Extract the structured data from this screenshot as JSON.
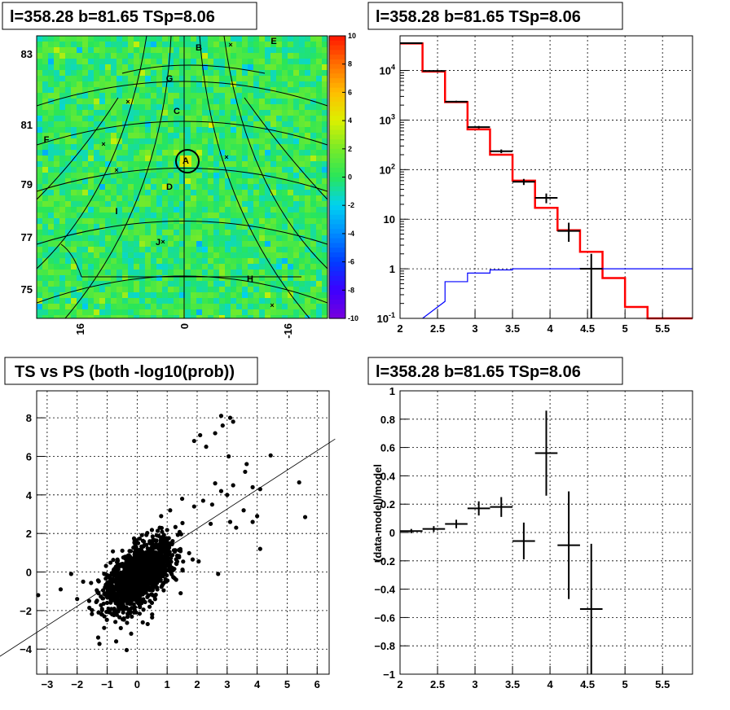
{
  "chart_data": [
    {
      "type": "heatmap",
      "title": "l=358.28 b=81.65 TSp=8.06",
      "ytick_labels": [
        "83",
        "81",
        "79",
        "77",
        "75"
      ],
      "xtick_labels": [
        "16",
        "0",
        "-16"
      ],
      "colorbar_ticks": [
        "10",
        "8",
        "6",
        "4",
        "2",
        "0",
        "-2",
        "-4",
        "-6",
        "-8",
        "-10"
      ],
      "zlim": [
        -10,
        10
      ],
      "source_labels": [
        "A",
        "B",
        "C",
        "D",
        "E",
        "F",
        "G",
        "H",
        "I",
        "J"
      ]
    },
    {
      "type": "line",
      "title": "l=358.28 b=81.65 TSp=8.06",
      "ylog": true,
      "xlim": [
        2,
        5.9
      ],
      "ylim": [
        0.1,
        50000
      ],
      "xtick_labels": [
        "2",
        "2.5",
        "3",
        "3.5",
        "4",
        "4.5",
        "5",
        "5.5"
      ],
      "ytick_labels": [
        "10^-1",
        "1",
        "10",
        "10^2",
        "10^3",
        "10^4"
      ],
      "series": [
        {
          "color": "#ff0000",
          "edges": [
            2.0,
            2.3,
            2.6,
            2.9,
            3.2,
            3.5,
            3.8,
            4.1,
            4.4,
            4.7,
            5.0,
            5.3,
            5.6,
            5.9
          ],
          "values": [
            35000,
            9500,
            2300,
            650,
            200,
            60,
            17,
            6,
            2.2,
            0.65,
            0.17,
            0.1,
            0.1
          ]
        },
        {
          "color": "#0000ff",
          "edges": [
            2.3,
            2.6,
            2.9,
            3.2,
            3.5,
            3.8,
            4.1,
            4.4,
            4.7,
            5.0,
            5.3,
            5.6,
            5.9
          ],
          "values": [
            0.22,
            0.55,
            0.82,
            0.95,
            1.0,
            1.0,
            1.0,
            1.02,
            1.0,
            1.0,
            1.0,
            1.0
          ]
        },
        {
          "color": "#000000",
          "points": [
            {
              "x": 2.15,
              "y": 35500,
              "dx": 0.15,
              "lo": 35000,
              "hi": 36000
            },
            {
              "x": 2.45,
              "y": 9800,
              "dx": 0.15,
              "lo": 9600,
              "hi": 10000
            },
            {
              "x": 2.75,
              "y": 2350,
              "dx": 0.15,
              "lo": 2250,
              "hi": 2450
            },
            {
              "x": 3.05,
              "y": 720,
              "dx": 0.15,
              "lo": 680,
              "hi": 760
            },
            {
              "x": 3.35,
              "y": 235,
              "dx": 0.15,
              "lo": 215,
              "hi": 255
            },
            {
              "x": 3.65,
              "y": 57,
              "dx": 0.15,
              "lo": 49,
              "hi": 65
            },
            {
              "x": 3.95,
              "y": 27,
              "dx": 0.15,
              "lo": 21,
              "hi": 33
            },
            {
              "x": 4.25,
              "y": 5.8,
              "dx": 0.15,
              "lo": 3.5,
              "hi": 8.5
            },
            {
              "x": 4.55,
              "y": 1.0,
              "dx": 0.15,
              "lo": 0.1,
              "hi": 2.0
            }
          ]
        }
      ]
    },
    {
      "type": "scatter",
      "title": "TS vs PS (both -log10(prob))",
      "xlim": [
        -3.35,
        6.4
      ],
      "ylim": [
        -5.3,
        9.4
      ],
      "xtick_labels": [
        "−3",
        "−2",
        "−1",
        "0",
        "1",
        "2",
        "3",
        "4",
        "5",
        "6"
      ],
      "ytick_labels": [
        "−4",
        "−2",
        "0",
        "2",
        "4",
        "6",
        "8"
      ],
      "fit_line": {
        "x1": -4.65,
        "y1": -4.45,
        "x2": 6.6,
        "y2": 6.9
      },
      "outliers": [
        [
          2.8,
          8.1
        ],
        [
          3.1,
          8.0
        ],
        [
          3.2,
          7.8
        ],
        [
          2.85,
          7.6
        ],
        [
          2.6,
          7.2
        ],
        [
          2.1,
          7.1
        ],
        [
          1.9,
          6.8
        ],
        [
          2.3,
          6.5
        ],
        [
          4.45,
          6.05
        ],
        [
          3.05,
          6.0
        ],
        [
          3.65,
          5.6
        ],
        [
          3.6,
          5.2
        ],
        [
          5.4,
          4.65
        ],
        [
          2.6,
          4.6
        ],
        [
          3.2,
          4.5
        ],
        [
          3.85,
          4.4
        ],
        [
          4.1,
          4.3
        ],
        [
          2.8,
          4.2
        ],
        [
          3.0,
          4.0
        ],
        [
          5.6,
          2.85
        ],
        [
          3.55,
          3.2
        ],
        [
          4.0,
          2.9
        ],
        [
          3.1,
          2.6
        ],
        [
          2.2,
          3.7
        ],
        [
          1.9,
          3.4
        ],
        [
          2.5,
          3.5
        ],
        [
          1.5,
          3.8
        ],
        [
          1.1,
          3.2
        ],
        [
          0.8,
          2.9
        ],
        [
          3.85,
          2.6
        ],
        [
          3.3,
          2.3
        ],
        [
          2.45,
          2.5
        ],
        [
          -3.3,
          -1.2
        ],
        [
          -2.2,
          -0.1
        ],
        [
          -2.0,
          -1.4
        ],
        [
          -1.6,
          -1.5
        ],
        [
          -2.55,
          -0.9
        ],
        [
          -1.1,
          -2.9
        ],
        [
          -1.3,
          -3.4
        ],
        [
          -0.35,
          -4.05
        ],
        [
          -0.7,
          -3.6
        ],
        [
          1.85,
          0.65
        ],
        [
          2.05,
          0.55
        ],
        [
          -0.55,
          -1.8
        ],
        [
          -0.2,
          -3.2
        ],
        [
          0.5,
          -2.2
        ],
        [
          1.3,
          -0.4
        ],
        [
          -1.8,
          -0.5
        ],
        [
          4.1,
          1.2
        ],
        [
          2.7,
          -0.1
        ],
        [
          0.35,
          -2.7
        ],
        [
          1.45,
          -1.1
        ]
      ]
    },
    {
      "type": "line",
      "title": "l=358.28 b=81.65 TSp=8.06",
      "ylabel": "(data-model)/model",
      "xlim": [
        2,
        5.9
      ],
      "ylim": [
        -1,
        1
      ],
      "xtick_labels": [
        "2",
        "2.5",
        "3",
        "3.5",
        "4",
        "4.5",
        "5",
        "5.5"
      ],
      "ytick_labels": [
        "−1",
        "−0.8",
        "−0.6",
        "−0.4",
        "−0.2",
        "0",
        "0.2",
        "0.4",
        "0.6",
        "0.8",
        "1"
      ],
      "points": [
        {
          "x": 2.15,
          "y": 0.01,
          "dx": 0.15,
          "err": 0.015
        },
        {
          "x": 2.45,
          "y": 0.025,
          "dx": 0.15,
          "err": 0.02
        },
        {
          "x": 2.75,
          "y": 0.06,
          "dx": 0.15,
          "err": 0.03
        },
        {
          "x": 3.05,
          "y": 0.17,
          "dx": 0.15,
          "err": 0.05
        },
        {
          "x": 3.35,
          "y": 0.18,
          "dx": 0.15,
          "err": 0.07
        },
        {
          "x": 3.65,
          "y": -0.06,
          "dx": 0.15,
          "err": 0.13
        },
        {
          "x": 3.95,
          "y": 0.56,
          "dx": 0.15,
          "err": 0.3
        },
        {
          "x": 4.25,
          "y": -0.09,
          "dx": 0.15,
          "err": 0.38
        },
        {
          "x": 4.55,
          "y": -0.54,
          "dx": 0.15,
          "err": 0.46
        }
      ]
    }
  ]
}
